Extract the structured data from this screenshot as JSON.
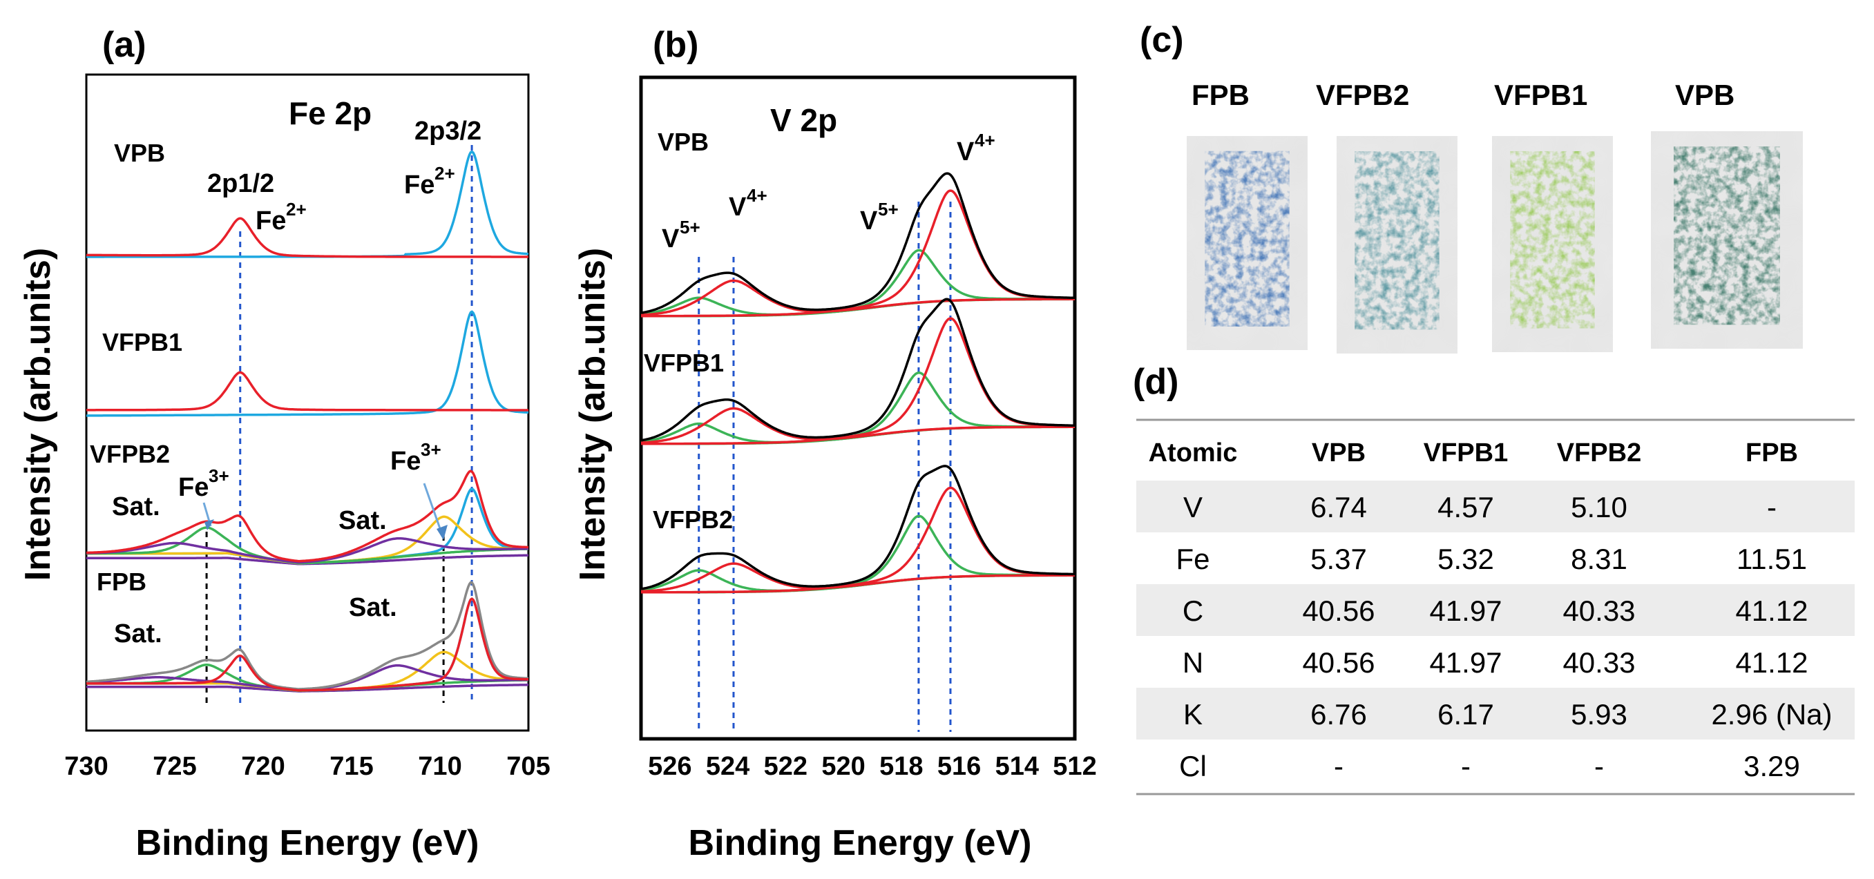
{
  "colors": {
    "red": "#e8202a",
    "blue": "#1ea8e0",
    "green": "#3cb457",
    "yellow": "#f2c21b",
    "purple": "#7030a0",
    "black": "#000000",
    "gray": "#888888",
    "brown": "#a0522d",
    "guide": "#2255cc"
  },
  "panels": {
    "a": {
      "label": "(a)",
      "title": "Fe 2p",
      "xlabel": "Binding Energy (eV)",
      "ylabel": "Intensity (arb.units)"
    },
    "b": {
      "label": "(b)",
      "title": "V 2p",
      "xlabel": "Binding Energy (eV)",
      "ylabel": "Intensity (arb.units)"
    },
    "c": {
      "label": "(c)"
    },
    "d": {
      "label": "(d)"
    }
  },
  "chart_data": [
    {
      "type": "line",
      "title": "Fe 2p",
      "xlabel": "Binding Energy (eV)",
      "ylabel": "Intensity (arb.units)",
      "xlim": [
        730,
        705
      ],
      "xticks": [
        "730",
        "725",
        "720",
        "715",
        "710",
        "705"
      ],
      "samples": [
        "VPB",
        "VFPB1",
        "VFPB2",
        "FPB"
      ],
      "annotations": {
        "p12": "2p1/2",
        "p32": "2p3/2",
        "fe2": "Fe",
        "fe3": "Fe",
        "sat": "Sat.",
        "sup2": "2+",
        "sup3": "3+"
      },
      "guide_lines_eV": [
        723.2,
        721.3,
        709.8,
        708.2
      ],
      "peaks_eV": {
        "fe2_p32": 708.2,
        "fe2_p12": 721.3,
        "fe3_p32": 709.8,
        "fe3_p12": 723.2,
        "sat_p32": 712.5,
        "sat_p12": 725.0
      }
    },
    {
      "type": "line",
      "title": "V 2p",
      "xlabel": "Binding Energy (eV)",
      "ylabel": "Intensity (arb.units)",
      "xlim": [
        527,
        512
      ],
      "xticks": [
        "526",
        "524",
        "522",
        "520",
        "518",
        "516",
        "514",
        "512"
      ],
      "samples": [
        "VPB",
        "VFPB1",
        "VFPB2"
      ],
      "annotations": {
        "v": "V",
        "sup4": "4+",
        "sup5": "5+"
      },
      "guide_lines_eV": [
        525.0,
        523.8,
        517.4,
        516.3
      ],
      "peaks_eV": {
        "v4_p32": 516.3,
        "v5_p32": 517.4,
        "v4_p12": 523.8,
        "v5_p12": 525.0
      }
    }
  ],
  "photos": {
    "labels": [
      "FPB",
      "VFPB2",
      "VFPB1",
      "VPB"
    ],
    "colors": [
      "#3a6fb5",
      "#4a8f9a",
      "#8cc63f",
      "#2e6f5e"
    ]
  },
  "table": {
    "headers": [
      "Atomic",
      "VPB",
      "VFPB1",
      "VFPB2",
      "FPB"
    ],
    "rows": [
      [
        "V",
        "6.74",
        "4.57",
        "5.10",
        "-"
      ],
      [
        "Fe",
        "5.37",
        "5.32",
        "8.31",
        "11.51"
      ],
      [
        "C",
        "40.56",
        "41.97",
        "40.33",
        "41.12"
      ],
      [
        "N",
        "40.56",
        "41.97",
        "40.33",
        "41.12"
      ],
      [
        "K",
        "6.76",
        "6.17",
        "5.93",
        "2.96 (Na)"
      ],
      [
        "Cl",
        "-",
        "-",
        "-",
        "3.29"
      ]
    ]
  }
}
